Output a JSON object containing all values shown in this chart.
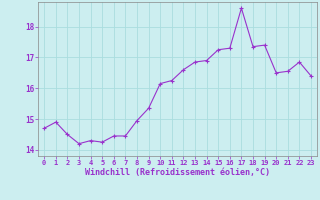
{
  "x": [
    0,
    1,
    2,
    3,
    4,
    5,
    6,
    7,
    8,
    9,
    10,
    11,
    12,
    13,
    14,
    15,
    16,
    17,
    18,
    19,
    20,
    21,
    22,
    23
  ],
  "y": [
    14.7,
    14.9,
    14.5,
    14.2,
    14.3,
    14.25,
    14.45,
    14.45,
    14.95,
    15.35,
    16.15,
    16.25,
    16.6,
    16.85,
    16.9,
    17.25,
    17.3,
    18.6,
    17.35,
    17.4,
    16.5,
    16.55,
    16.85,
    16.4
  ],
  "line_color": "#9932CC",
  "marker": "+",
  "marker_size": 3,
  "marker_lw": 0.8,
  "bg_color": "#cceef0",
  "grid_color": "#aadddf",
  "xlabel": "Windchill (Refroidissement éolien,°C)",
  "ylim": [
    13.8,
    18.8
  ],
  "xlim": [
    -0.5,
    23.5
  ],
  "yticks": [
    14,
    15,
    16,
    17,
    18
  ],
  "xticks": [
    0,
    1,
    2,
    3,
    4,
    5,
    6,
    7,
    8,
    9,
    10,
    11,
    12,
    13,
    14,
    15,
    16,
    17,
    18,
    19,
    20,
    21,
    22,
    23
  ],
  "xtick_labels": [
    "0",
    "1",
    "2",
    "3",
    "4",
    "5",
    "6",
    "7",
    "8",
    "9",
    "10",
    "11",
    "12",
    "13",
    "14",
    "15",
    "16",
    "17",
    "18",
    "19",
    "20",
    "21",
    "22",
    "23"
  ],
  "label_color": "#9932CC",
  "tick_color": "#9932CC",
  "line_width": 0.8
}
